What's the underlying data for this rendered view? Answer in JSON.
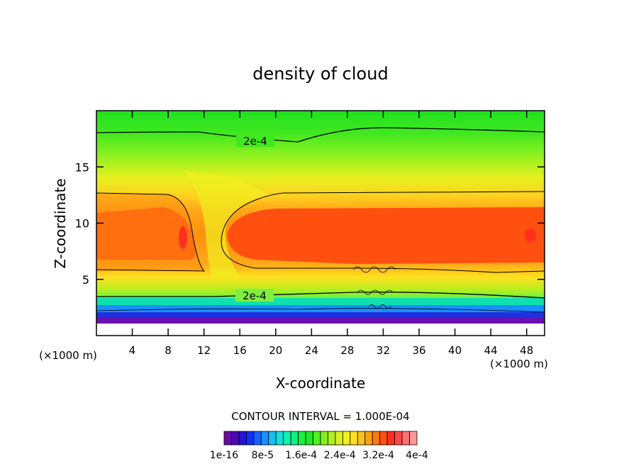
{
  "chart_data": {
    "type": "heatmap",
    "title": "density of cloud",
    "xlabel": "X-coordinate",
    "ylabel": "Z-coordinate",
    "x_unit_left": "(×1000 m)",
    "x_unit_right": "(×1000 m)",
    "xlim": [
      0,
      50
    ],
    "ylim": [
      0,
      20
    ],
    "x_ticks": [
      "4",
      "8",
      "12",
      "16",
      "20",
      "24",
      "28",
      "32",
      "36",
      "40",
      "44",
      "48"
    ],
    "y_ticks": [
      "5",
      "10",
      "15"
    ],
    "contour_labels": [
      "2e-4",
      "2e-4"
    ],
    "contour_interval_text": "CONTOUR INTERVAL = 1.000E-04",
    "colorbar_labels": [
      "1e-16",
      "8e-5",
      "1.6e-4",
      "2.4e-4",
      "3.2e-4",
      "4e-4"
    ],
    "colorbar_colors": [
      "#6a0aa0",
      "#4b08b8",
      "#2a10d8",
      "#1030f0",
      "#1860ff",
      "#1890ff",
      "#10c0f0",
      "#10e0d8",
      "#10f0b0",
      "#10f080",
      "#18f048",
      "#20e820",
      "#50f020",
      "#80f020",
      "#b0f020",
      "#d8f020",
      "#f0f020",
      "#ffe020",
      "#ffc020",
      "#ffa010",
      "#ff7810",
      "#ff5010",
      "#ff3020",
      "#ff4848",
      "#ff7070",
      "#ff9898"
    ],
    "colorscale_range": [
      0,
      0.0004
    ],
    "note": "Cloud density field over x 0–50 km, z 0–20 km. Low values near ground (purple/blue), high values (red) in band z≈6–12 km, downdraft gap near x≈12–14 km."
  }
}
